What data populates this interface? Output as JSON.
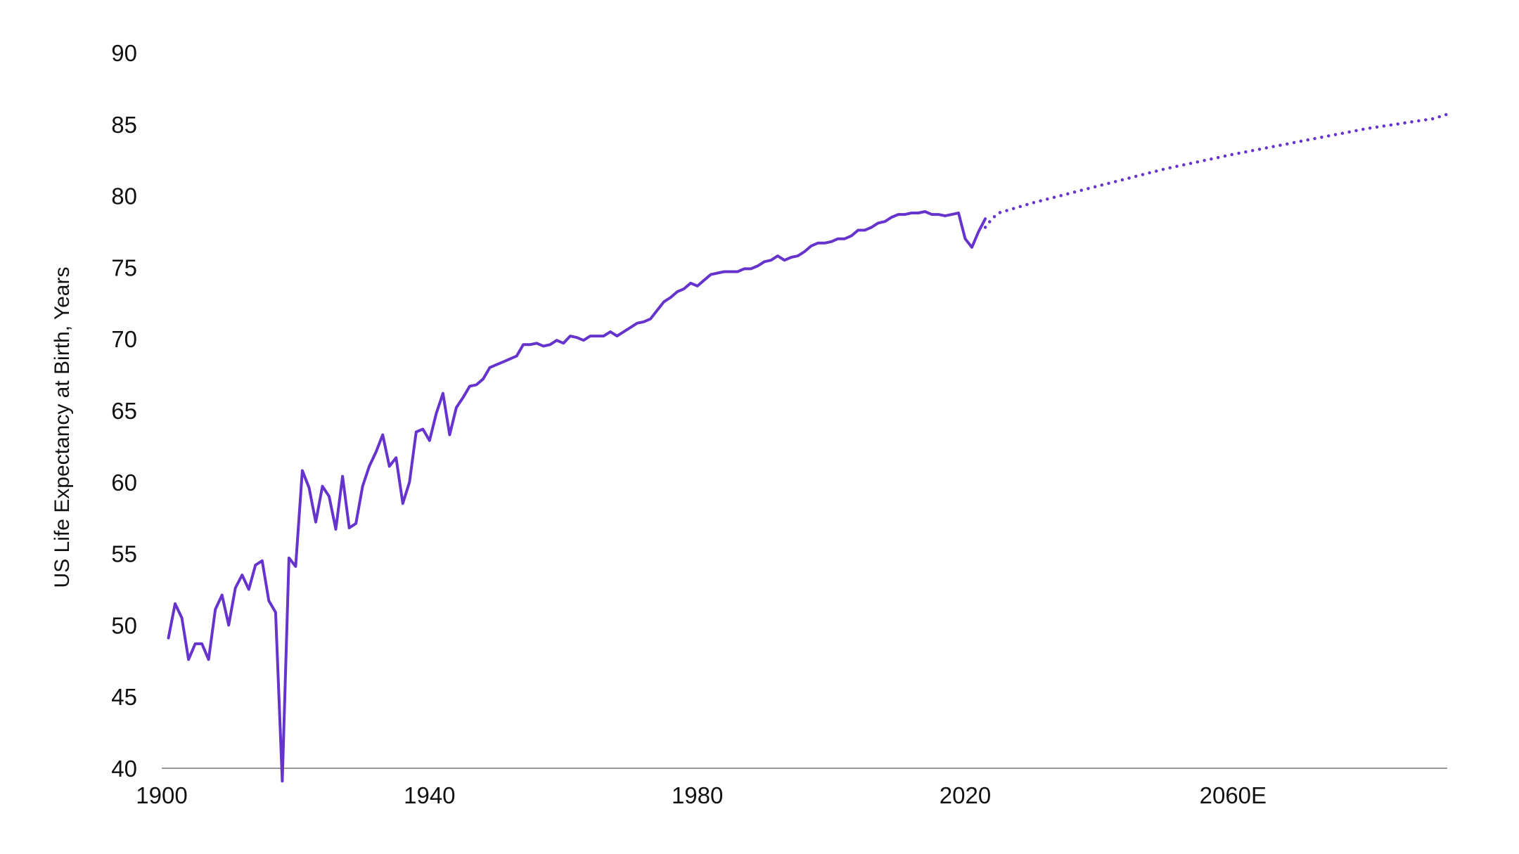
{
  "chart_data": {
    "type": "line",
    "title": "",
    "xlabel": "",
    "ylabel": "US Life Expectancy at Birth, Years",
    "xlim": [
      1900,
      2092
    ],
    "ylim": [
      40,
      90
    ],
    "x_ticks": [
      {
        "value": 1900,
        "label": "1900"
      },
      {
        "value": 1940,
        "label": "1940"
      },
      {
        "value": 1980,
        "label": "1980"
      },
      {
        "value": 2020,
        "label": "2020"
      },
      {
        "value": 2060,
        "label": "2060E"
      }
    ],
    "y_ticks": [
      40,
      45,
      50,
      55,
      60,
      65,
      70,
      75,
      80,
      85,
      90
    ],
    "grid": false,
    "legend": "none",
    "colors": {
      "line": "#6633cc",
      "axis": "#999999",
      "text": "#111111"
    },
    "series": [
      {
        "style": "solid",
        "x": [
          1901,
          1902,
          1903,
          1904,
          1905,
          1906,
          1907,
          1908,
          1909,
          1910,
          1911,
          1912,
          1913,
          1914,
          1915,
          1916,
          1917,
          1918,
          1919,
          1920,
          1921,
          1922,
          1923,
          1924,
          1925,
          1926,
          1927,
          1928,
          1929,
          1930,
          1931,
          1932,
          1933,
          1934,
          1935,
          1936,
          1937,
          1938,
          1939,
          1940,
          1941,
          1942,
          1943,
          1944,
          1945,
          1946,
          1947,
          1948,
          1949,
          1950,
          1951,
          1952,
          1953,
          1954,
          1955,
          1956,
          1957,
          1958,
          1959,
          1960,
          1961,
          1962,
          1963,
          1964,
          1965,
          1966,
          1967,
          1968,
          1969,
          1970,
          1971,
          1972,
          1973,
          1974,
          1975,
          1976,
          1977,
          1978,
          1979,
          1980,
          1981,
          1982,
          1983,
          1984,
          1985,
          1986,
          1987,
          1988,
          1989,
          1990,
          1991,
          1992,
          1993,
          1994,
          1995,
          1996,
          1997,
          1998,
          1999,
          2000,
          2001,
          2002,
          2003,
          2004,
          2005,
          2006,
          2007,
          2008,
          2009,
          2010,
          2011,
          2012,
          2013,
          2014,
          2015,
          2016,
          2017,
          2018,
          2019,
          2020,
          2021,
          2022,
          2023
        ],
        "y": [
          49.1,
          51.5,
          50.5,
          47.6,
          48.7,
          48.7,
          47.6,
          51.1,
          52.1,
          50.0,
          52.6,
          53.5,
          52.5,
          54.2,
          54.5,
          51.7,
          50.9,
          39.1,
          54.7,
          54.1,
          60.8,
          59.6,
          57.2,
          59.7,
          59.0,
          56.7,
          60.4,
          56.8,
          57.1,
          59.7,
          61.1,
          62.1,
          63.3,
          61.1,
          61.7,
          58.5,
          60.0,
          63.5,
          63.7,
          62.9,
          64.8,
          66.2,
          63.3,
          65.2,
          65.9,
          66.7,
          66.8,
          67.2,
          68.0,
          68.2,
          68.4,
          68.6,
          68.8,
          69.6,
          69.6,
          69.7,
          69.5,
          69.6,
          69.9,
          69.7,
          70.2,
          70.1,
          69.9,
          70.2,
          70.2,
          70.2,
          70.5,
          70.2,
          70.5,
          70.8,
          71.1,
          71.2,
          71.4,
          72.0,
          72.6,
          72.9,
          73.3,
          73.5,
          73.9,
          73.7,
          74.1,
          74.5,
          74.6,
          74.7,
          74.7,
          74.7,
          74.9,
          74.9,
          75.1,
          75.4,
          75.5,
          75.8,
          75.5,
          75.7,
          75.8,
          76.1,
          76.5,
          76.7,
          76.7,
          76.8,
          77.0,
          77.0,
          77.2,
          77.6,
          77.6,
          77.8,
          78.1,
          78.2,
          78.5,
          78.7,
          78.7,
          78.8,
          78.8,
          78.9,
          78.7,
          78.7,
          78.6,
          78.7,
          78.8,
          77.0,
          76.4,
          77.5,
          78.4
        ]
      },
      {
        "style": "dotted",
        "x": [
          2023,
          2024,
          2025,
          2030,
          2040,
          2050,
          2060,
          2070,
          2080,
          2090,
          2092
        ],
        "y": [
          77.8,
          78.4,
          78.8,
          79.5,
          80.7,
          81.9,
          82.9,
          83.8,
          84.7,
          85.4,
          85.7
        ]
      }
    ]
  }
}
